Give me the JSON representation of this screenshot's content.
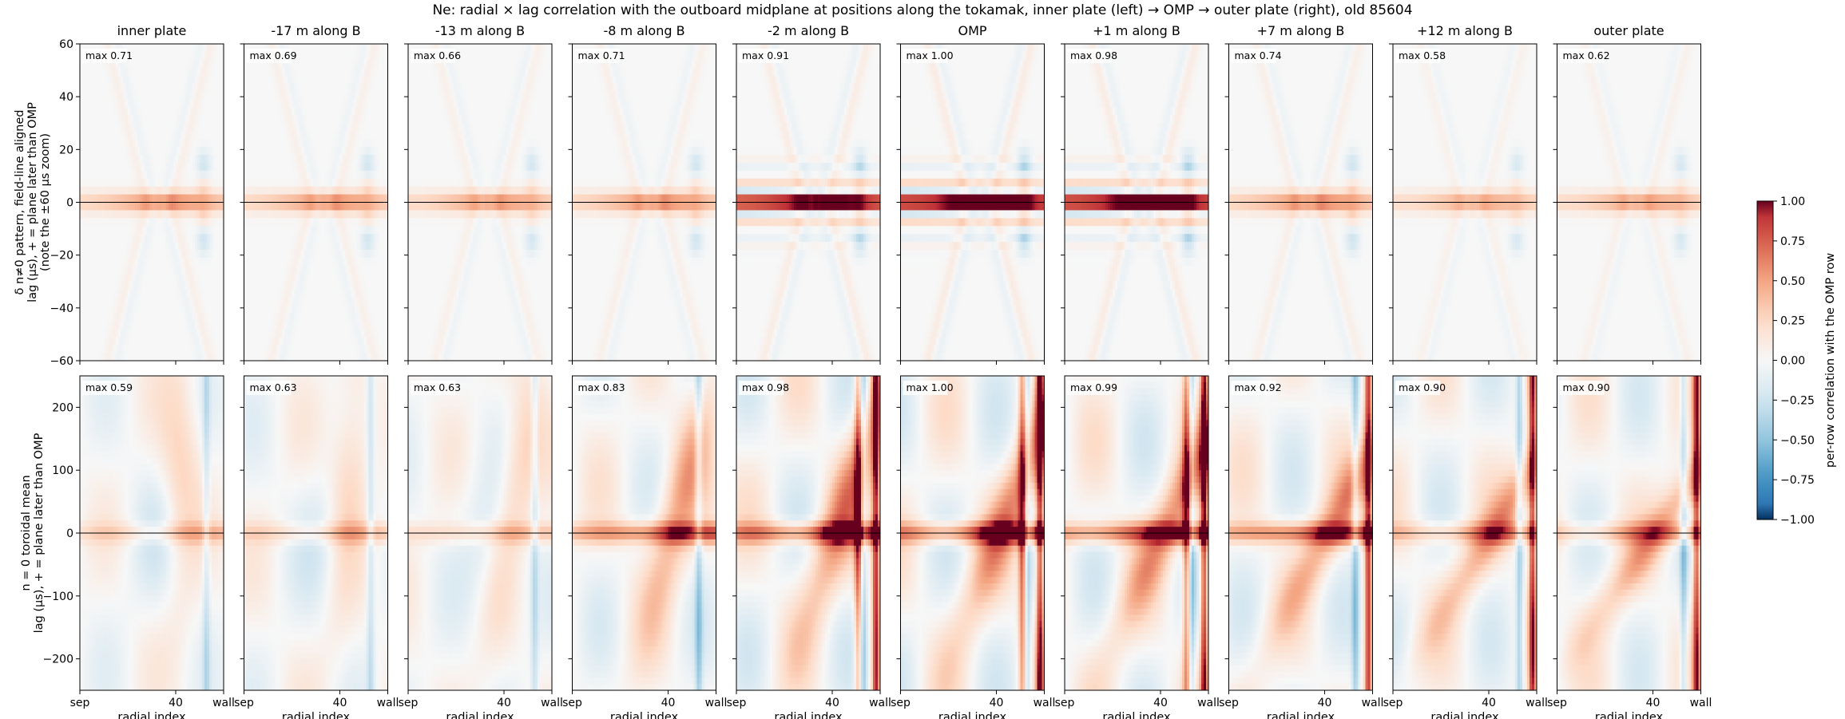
{
  "chart_data": {
    "type": "heatmap",
    "title": "Ne: radial × lag correlation with the outboard midplane at positions along the tokamak, inner plate (left) → OMP → outer plate (right), old 85604",
    "columns": [
      "inner plate",
      "-17 m along B",
      "-13 m along B",
      "-8 m along B",
      "-2 m along B",
      "OMP",
      "+1 m along B",
      "+7 m along B",
      "+12 m along B",
      "outer plate"
    ],
    "xlabel": "radial index",
    "x_ticks": [
      "sep",
      "40",
      "wall"
    ],
    "xlim": [
      0,
      60
    ],
    "rows": [
      {
        "ylabel": "δ n≠0 pattern, field-line aligned\nlag (µs), + = plane later than OMP\n(note the ±60 µs zoom)",
        "ylim": [
          -60,
          60
        ],
        "y_ticks": [
          "60",
          "40",
          "20",
          "0",
          "−20",
          "−40",
          "−60"
        ],
        "max_labels": [
          "max 0.71",
          "max 0.69",
          "max 0.66",
          "max 0.71",
          "max 0.91",
          "max 1.00",
          "max 0.98",
          "max 0.74",
          "max 0.58",
          "max 0.62"
        ],
        "max_values": [
          0.71,
          0.69,
          0.66,
          0.71,
          0.91,
          1.0,
          0.98,
          0.74,
          0.58,
          0.62
        ]
      },
      {
        "ylabel": "n = 0 toroidal mean\nlag (µs), + = plane later than OMP",
        "ylim": [
          -250,
          250
        ],
        "y_ticks": [
          "200",
          "100",
          "0",
          "−100",
          "−200"
        ],
        "max_labels": [
          "max 0.59",
          "max 0.63",
          "max 0.63",
          "max 0.83",
          "max 0.98",
          "max 1.00",
          "max 0.99",
          "max 0.92",
          "max 0.90",
          "max 0.90"
        ],
        "max_values": [
          0.59,
          0.63,
          0.63,
          0.83,
          0.98,
          1.0,
          0.99,
          0.92,
          0.9,
          0.9
        ]
      }
    ],
    "colorbar": {
      "label": "per-row correlation with the OMP row",
      "colormap": "RdBu_r",
      "vmin": -1.0,
      "vmax": 1.0,
      "ticks": [
        "1.00",
        "0.75",
        "0.50",
        "0.25",
        "0.00",
        "−0.25",
        "−0.50",
        "−0.75",
        "−1.00"
      ]
    }
  },
  "colors": {
    "negative": "#053061",
    "neutral": "#f7f7f7",
    "positive": "#67001f"
  }
}
